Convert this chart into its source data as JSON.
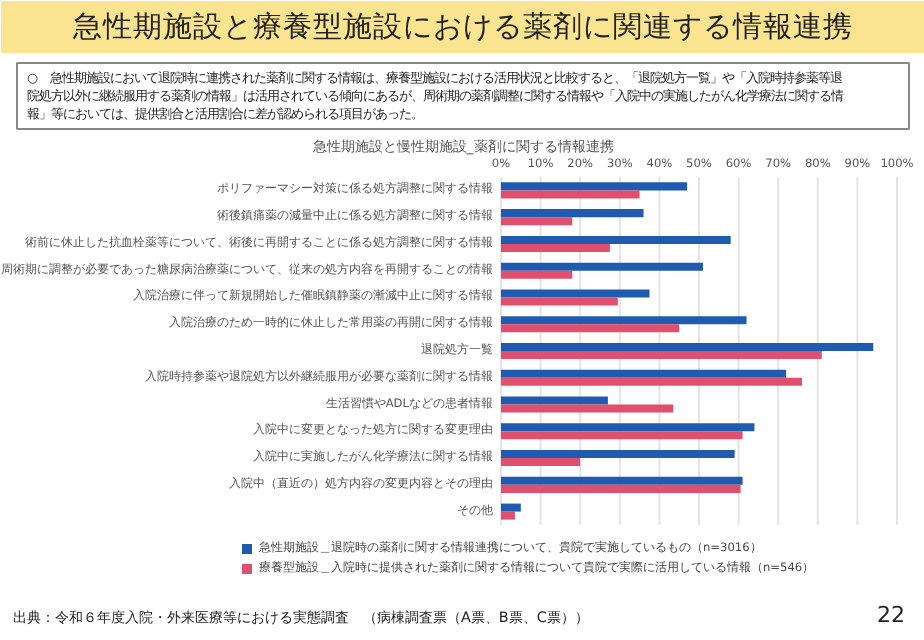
{
  "chart_data": {
    "type": "bar",
    "orientation": "horizontal",
    "title": "急性期施設と療養型施設における薬剤に関連する情報連携",
    "subtitle": "急性期施設と慢性期施設_薬剤に関する情報連携",
    "categories": [
      "ポリファーマシー対策に係る処方調整に関する情報",
      "術後鎮痛薬の減量中止に係る処方調整に関する情報",
      "術前に休止した抗血栓薬等について、術後に再開することに係る処方調整に関する情報",
      "周術期に調整が必要であった糖尿病治療薬について、従来の処方内容を再開することの情報",
      "入院治療に伴って新規開始した催眠鎮静薬の漸減中止に関する情報",
      "入院治療のため一時的に休止した常用薬の再開に関する情報",
      "退院処方一覧",
      "入院時持参薬や退院処方以外継続服用が必要な薬剤に関する情報",
      "生活習慣やADLなどの患者情報",
      "入院中に変更となった処方に関する変更理由",
      "入院中に実施したがん化学療法に関する情報",
      "入院中（直近の）処方内容の変更内容とその理由",
      "その他"
    ],
    "series": [
      {
        "name": "急性期施設＿退院時の薬剤に関する情報連携について、貴院で実施しているもの（n=3016）",
        "color": "#1f5bb0",
        "values": [
          47,
          36,
          58,
          51,
          37.5,
          62,
          94,
          72,
          27,
          64,
          59,
          61,
          5
        ]
      },
      {
        "name": "療養型施設＿入院時に提供された薬剤に関する情報について貴院で実際に活用している情報（n=546）",
        "color": "#e0506e",
        "values": [
          35,
          18,
          27.5,
          18,
          29.5,
          45,
          81,
          76,
          43.5,
          61,
          20,
          60.5,
          3.5
        ]
      }
    ],
    "xlim": [
      0,
      100
    ],
    "xticks": [
      {
        "value": 0,
        "label": "0%"
      },
      {
        "value": 10,
        "label": "10%"
      },
      {
        "value": 20,
        "label": "20%"
      },
      {
        "value": 30,
        "label": "30%"
      },
      {
        "value": 40,
        "label": "40%"
      },
      {
        "value": 50,
        "label": "50%"
      },
      {
        "value": 60,
        "label": "60%"
      },
      {
        "value": 70,
        "label": "70%"
      },
      {
        "value": 80,
        "label": "80%"
      },
      {
        "value": 90,
        "label": "90%"
      },
      {
        "value": 100,
        "label": "100%"
      }
    ],
    "grid": "x",
    "legend": "bottom",
    "annotations": [
      "○　急性期施設において退院時に連携された薬剤に関する情報は、療養型施設における活用状況と比較すると、「退院処方一覧」や「入院時持参薬等退院処方以外に継続服用する薬剤の情報」は活用されている傾向にあるが、周術期の薬剤調整に関する情報や「入院中の実施したがん化学療法に関する情報」等においては、提供割合と活用割合に差が認められる項目があった。",
      "出典：令和６年度入院・外来医療等における実態調査　（病棟調査票（A票、B票、C票））",
      "22"
    ]
  }
}
